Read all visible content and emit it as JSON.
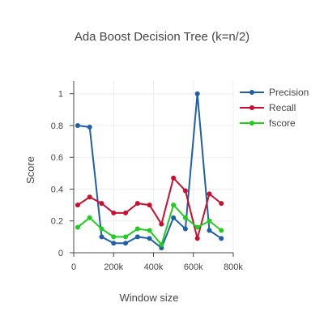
{
  "chart_data": {
    "type": "line",
    "title": "Ada Boost Decision Tree (k=n/2)",
    "xlabel": "Window size",
    "ylabel": "Score",
    "xlim": [
      0,
      800000
    ],
    "ylim": [
      0,
      1.08
    ],
    "x_ticks": [
      {
        "value": 0,
        "label": "0"
      },
      {
        "value": 200000,
        "label": "200k"
      },
      {
        "value": 400000,
        "label": "400k"
      },
      {
        "value": 600000,
        "label": "600k"
      },
      {
        "value": 800000,
        "label": "800k"
      }
    ],
    "y_ticks": [
      {
        "value": 0,
        "label": "0"
      },
      {
        "value": 0.2,
        "label": "0.2"
      },
      {
        "value": 0.4,
        "label": "0.4"
      },
      {
        "value": 0.6,
        "label": "0.6"
      },
      {
        "value": 0.8,
        "label": "0.8"
      },
      {
        "value": 1,
        "label": "1"
      }
    ],
    "grid": true,
    "legend_position": "top-right",
    "x": [
      20000,
      80000,
      140000,
      200000,
      260000,
      320000,
      380000,
      440000,
      500000,
      560000,
      620000,
      680000,
      740000
    ],
    "series": [
      {
        "name": "Precision",
        "color": "#1f5fa6",
        "values": [
          0.8,
          0.79,
          0.1,
          0.06,
          0.06,
          0.1,
          0.09,
          0.03,
          0.22,
          0.15,
          1.0,
          0.14,
          0.09
        ]
      },
      {
        "name": "Recall",
        "color": "#c8102e",
        "values": [
          0.3,
          0.35,
          0.31,
          0.25,
          0.25,
          0.31,
          0.3,
          0.18,
          0.47,
          0.39,
          0.09,
          0.37,
          0.31
        ]
      },
      {
        "name": "fscore",
        "color": "#22cc22",
        "values": [
          0.16,
          0.22,
          0.15,
          0.1,
          0.1,
          0.15,
          0.14,
          0.05,
          0.3,
          0.22,
          0.16,
          0.2,
          0.14
        ]
      }
    ]
  }
}
